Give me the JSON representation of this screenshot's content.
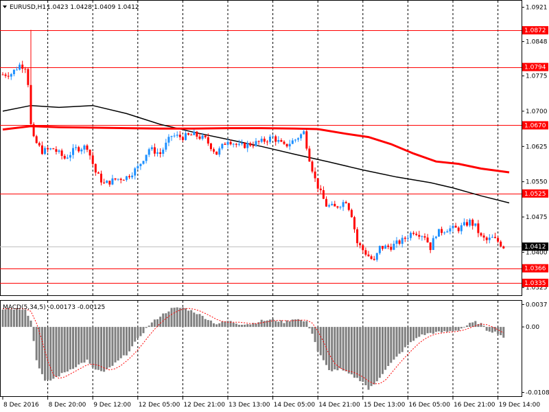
{
  "header": {
    "symbol": "EURUSD,H1",
    "ohlc": "1.0423 1.0428 1.0409 1.0412"
  },
  "macd": {
    "label": "MACD(5,34,5) -0.00173 -0.00125",
    "ticks": [
      {
        "v": 0.0037,
        "label": "0.0037"
      },
      {
        "v": 0.0,
        "label": "0.00"
      },
      {
        "v": -0.0108,
        "label": "-0.01083"
      }
    ]
  },
  "colors": {
    "bull": "#1e90ff",
    "bear": "#ff0000",
    "ma_fast": "#000000",
    "ma_slow": "#ff0000",
    "level": "#ff0000",
    "grid": "#000000",
    "hist": "#808080",
    "signal": "#ff0000",
    "tag_bg": "#ff0000",
    "cur_bg": "#000000"
  },
  "chart_data": {
    "type": "candlestick",
    "price_axis": {
      "min": 1.031,
      "max": 1.0935,
      "ticks": [
        {
          "v": 1.0921,
          "label": "1.0921"
        },
        {
          "v": 1.0848,
          "label": "1.0848"
        },
        {
          "v": 1.0775,
          "label": "1.0775"
        },
        {
          "v": 1.07,
          "label": "1.0700"
        },
        {
          "v": 1.0625,
          "label": "1.0625"
        },
        {
          "v": 1.055,
          "label": "1.0550"
        },
        {
          "v": 1.0475,
          "label": "1.0475"
        },
        {
          "v": 1.04,
          "label": "1.0400"
        },
        {
          "v": 1.0325,
          "label": "1.0325"
        }
      ]
    },
    "levels": [
      {
        "v": 1.0872,
        "label": "1.0872"
      },
      {
        "v": 1.0794,
        "label": "1.0794"
      },
      {
        "v": 1.067,
        "label": "1.0670"
      },
      {
        "v": 1.0525,
        "label": "1.0525"
      },
      {
        "v": 1.0366,
        "label": "1.0366"
      },
      {
        "v": 1.0335,
        "label": "1.0335"
      }
    ],
    "current_price": {
      "v": 1.0412,
      "label": "1.0412"
    },
    "time_labels": [
      {
        "i": 0,
        "label": "8 Dec 2016"
      },
      {
        "i": 16,
        "label": "8 Dec 20:00"
      },
      {
        "i": 32,
        "label": "9 Dec 12:00"
      },
      {
        "i": 48,
        "label": "12 Dec 05:00"
      },
      {
        "i": 64,
        "label": "12 Dec 21:00"
      },
      {
        "i": 80,
        "label": "13 Dec 13:00"
      },
      {
        "i": 96,
        "label": "14 Dec 05:00"
      },
      {
        "i": 112,
        "label": "14 Dec 21:00"
      },
      {
        "i": 128,
        "label": "15 Dec 13:00"
      },
      {
        "i": 144,
        "label": "16 Dec 05:00"
      },
      {
        "i": 160,
        "label": "16 Dec 21:00"
      },
      {
        "i": 176,
        "label": "19 Dec 14:00"
      }
    ],
    "close_path": [
      [
        0,
        1.0778
      ],
      [
        3,
        1.078
      ],
      [
        6,
        1.0798
      ],
      [
        8,
        1.0795
      ],
      [
        9,
        1.076
      ],
      [
        10,
        1.067
      ],
      [
        11,
        1.064
      ],
      [
        14,
        1.0615
      ],
      [
        18,
        1.062
      ],
      [
        22,
        1.06
      ],
      [
        26,
        1.062
      ],
      [
        30,
        1.0625
      ],
      [
        33,
        1.057
      ],
      [
        36,
        1.0545
      ],
      [
        40,
        1.0555
      ],
      [
        44,
        1.056
      ],
      [
        48,
        1.058
      ],
      [
        52,
        1.062
      ],
      [
        56,
        1.061
      ],
      [
        60,
        1.0648
      ],
      [
        64,
        1.0645
      ],
      [
        68,
        1.065
      ],
      [
        72,
        1.064
      ],
      [
        76,
        1.061
      ],
      [
        80,
        1.064
      ],
      [
        84,
        1.0625
      ],
      [
        88,
        1.063
      ],
      [
        92,
        1.0635
      ],
      [
        96,
        1.0645
      ],
      [
        100,
        1.0625
      ],
      [
        104,
        1.064
      ],
      [
        107,
        1.0655
      ],
      [
        109,
        1.06
      ],
      [
        111,
        1.0555
      ],
      [
        113,
        1.0525
      ],
      [
        115,
        1.05
      ],
      [
        118,
        1.0495
      ],
      [
        122,
        1.051
      ],
      [
        124,
        1.048
      ],
      [
        126,
        1.042
      ],
      [
        128,
        1.0405
      ],
      [
        130,
        1.0392
      ],
      [
        132,
        1.038
      ],
      [
        134,
        1.041
      ],
      [
        138,
        1.0412
      ],
      [
        142,
        1.0425
      ],
      [
        146,
        1.0445
      ],
      [
        150,
        1.0435
      ],
      [
        152,
        1.041
      ],
      [
        154,
        1.044
      ],
      [
        158,
        1.045
      ],
      [
        162,
        1.045
      ],
      [
        166,
        1.0465
      ],
      [
        168,
        1.0455
      ],
      [
        170,
        1.0432
      ],
      [
        172,
        1.0425
      ],
      [
        174,
        1.043
      ],
      [
        176,
        1.0423
      ],
      [
        178,
        1.0412
      ]
    ],
    "spikes": [
      {
        "i": 10,
        "high": 1.0873
      }
    ],
    "ma_fast": [
      [
        0,
        1.07
      ],
      [
        10,
        1.0712
      ],
      [
        20,
        1.0708
      ],
      [
        32,
        1.0712
      ],
      [
        44,
        1.0695
      ],
      [
        56,
        1.0672
      ],
      [
        68,
        1.0655
      ],
      [
        80,
        1.064
      ],
      [
        92,
        1.0625
      ],
      [
        104,
        1.0608
      ],
      [
        116,
        1.0592
      ],
      [
        128,
        1.0575
      ],
      [
        140,
        1.056
      ],
      [
        152,
        1.0548
      ],
      [
        160,
        1.0537
      ],
      [
        170,
        1.052
      ],
      [
        180,
        1.0505
      ]
    ],
    "ma_slow": [
      [
        0,
        1.0661
      ],
      [
        10,
        1.0668
      ],
      [
        20,
        1.0666
      ],
      [
        32,
        1.0665
      ],
      [
        44,
        1.0664
      ],
      [
        56,
        1.0663
      ],
      [
        68,
        1.0663
      ],
      [
        80,
        1.0664
      ],
      [
        92,
        1.0664
      ],
      [
        104,
        1.0663
      ],
      [
        112,
        1.0662
      ],
      [
        122,
        1.0652
      ],
      [
        130,
        1.0645
      ],
      [
        138,
        1.063
      ],
      [
        146,
        1.061
      ],
      [
        154,
        1.0593
      ],
      [
        162,
        1.0588
      ],
      [
        170,
        1.0578
      ],
      [
        180,
        1.057
      ]
    ],
    "macd_path": [
      [
        0,
        0.003
      ],
      [
        8,
        0.003
      ],
      [
        10,
        0.001
      ],
      [
        12,
        -0.0055
      ],
      [
        15,
        -0.009
      ],
      [
        17,
        -0.0088
      ],
      [
        22,
        -0.0075
      ],
      [
        30,
        -0.0055
      ],
      [
        32,
        -0.0068
      ],
      [
        36,
        -0.0075
      ],
      [
        40,
        -0.006
      ],
      [
        44,
        -0.0045
      ],
      [
        48,
        -0.002
      ],
      [
        52,
        0.0003
      ],
      [
        56,
        0.0018
      ],
      [
        60,
        0.003
      ],
      [
        64,
        0.0032
      ],
      [
        68,
        0.0025
      ],
      [
        72,
        0.0015
      ],
      [
        76,
        0.0005
      ],
      [
        80,
        0.001
      ],
      [
        84,
        0.0005
      ],
      [
        88,
        0.0005
      ],
      [
        92,
        0.001
      ],
      [
        96,
        0.0012
      ],
      [
        100,
        0.0008
      ],
      [
        104,
        0.0014
      ],
      [
        108,
        0.0008
      ],
      [
        110,
        -0.001
      ],
      [
        112,
        -0.004
      ],
      [
        116,
        -0.0072
      ],
      [
        120,
        -0.007
      ],
      [
        124,
        -0.008
      ],
      [
        126,
        -0.0085
      ],
      [
        128,
        -0.009
      ],
      [
        130,
        -0.0103
      ],
      [
        132,
        -0.0095
      ],
      [
        136,
        -0.007
      ],
      [
        140,
        -0.005
      ],
      [
        144,
        -0.003
      ],
      [
        148,
        -0.0015
      ],
      [
        152,
        -0.001
      ],
      [
        158,
        -0.0008
      ],
      [
        162,
        -0.0005
      ],
      [
        166,
        0.0005
      ],
      [
        168,
        0.0008
      ],
      [
        170,
        0.0005
      ],
      [
        172,
        -0.0005
      ],
      [
        176,
        -0.001
      ],
      [
        178,
        -0.0017
      ]
    ]
  }
}
